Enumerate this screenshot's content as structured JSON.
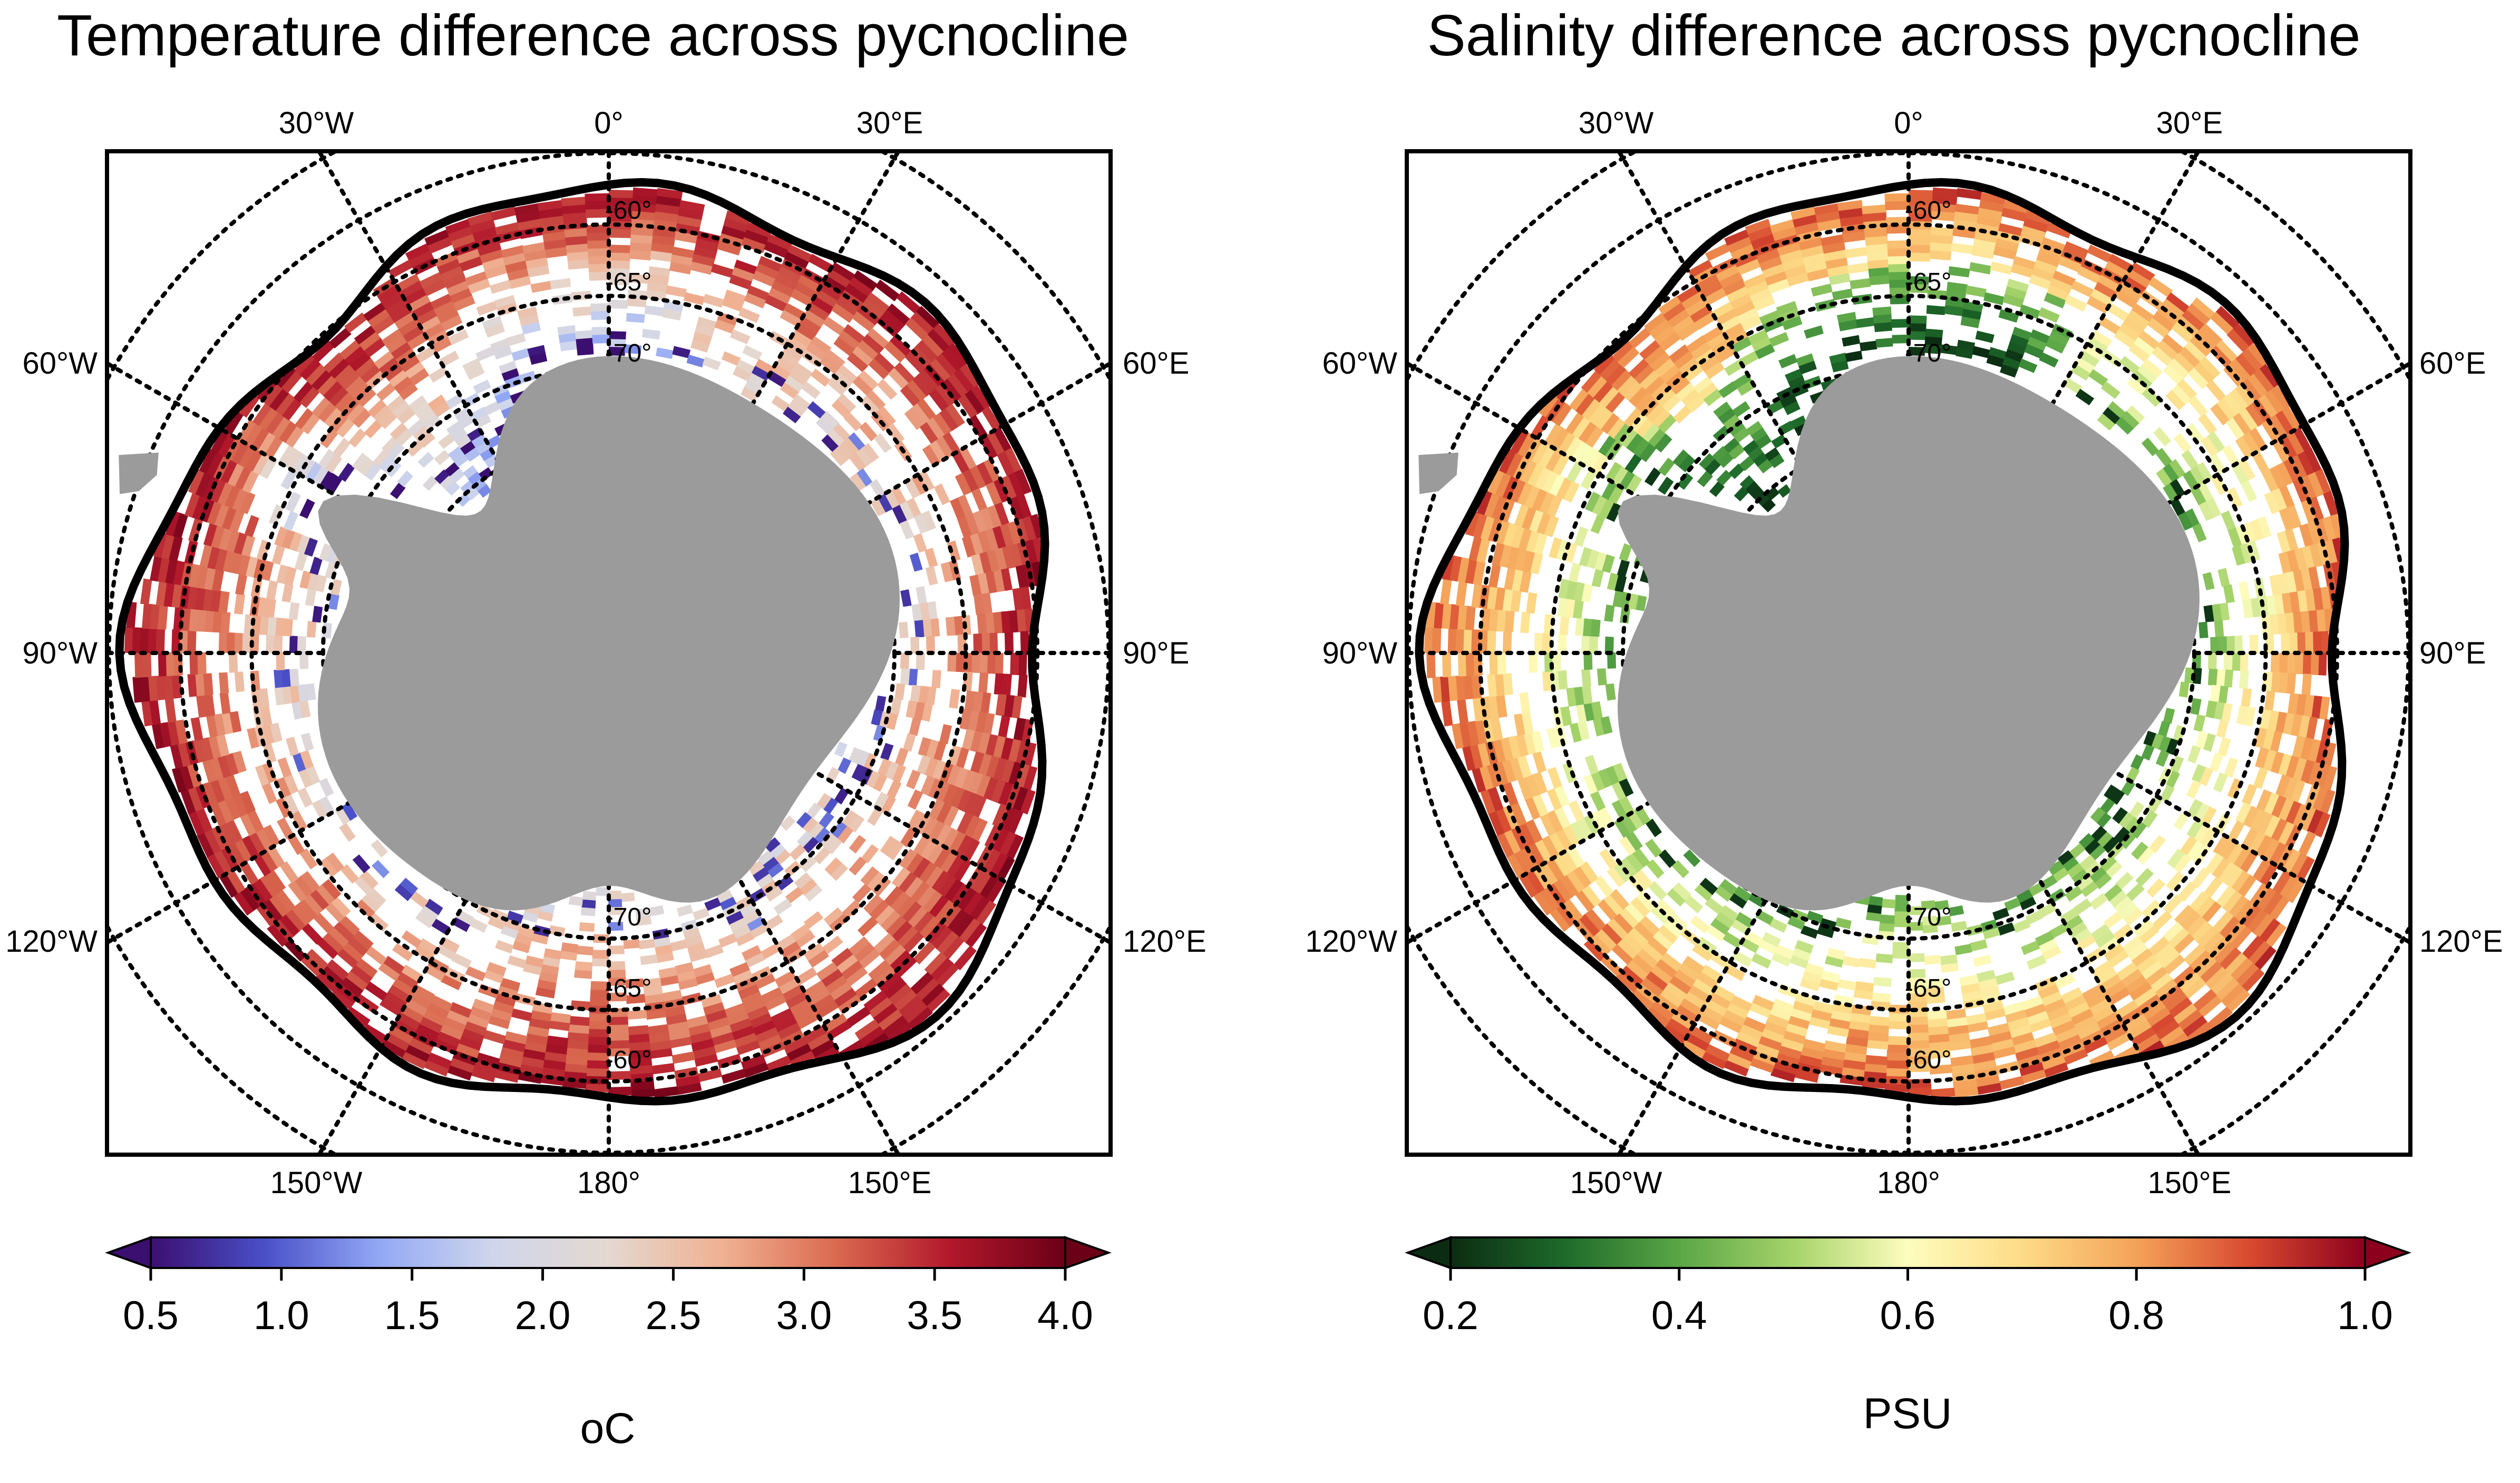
{
  "figure": {
    "panels": [
      {
        "id": "temperature",
        "title": "Temperature difference across pycnocline",
        "colormap": [
          "#3b0f70",
          "#4a50c8",
          "#93a8f4",
          "#cfd6ec",
          "#e4d8d0",
          "#f0b192",
          "#d9694f",
          "#b2182b",
          "#6b0017"
        ],
        "mid_color": "#e6d2c6",
        "colorbar": {
          "ticks": [
            "0.5",
            "1.0",
            "1.5",
            "2.0",
            "2.5",
            "3.0",
            "3.5",
            "4.0"
          ],
          "min": 0.5,
          "max": 4.0,
          "unit": "oC",
          "extend": "both"
        }
      },
      {
        "id": "salinity",
        "title": "Salinity difference across pycnocline",
        "colormap": [
          "#0b2c12",
          "#1e6b2b",
          "#5aa646",
          "#a6d36a",
          "#fdfdbd",
          "#fddb87",
          "#f4a259",
          "#d7492f",
          "#8c001e"
        ],
        "mid_color": "#e8d07a",
        "colorbar": {
          "ticks": [
            "0.2",
            "0.4",
            "0.6",
            "0.8",
            "1.0"
          ],
          "min": 0.2,
          "max": 1.0,
          "unit": "PSU",
          "extend": "both"
        }
      }
    ],
    "longitude_labels": {
      "top": [
        "30°W",
        "0°",
        "30°E"
      ],
      "left": [
        "60°W",
        "90°W",
        "120°W"
      ],
      "right": [
        "60°E",
        "90°E",
        "120°E"
      ],
      "bottom": [
        "150°W",
        "180°",
        "150°E"
      ]
    },
    "latitude_labels": {
      "top": [
        "-60°",
        "-65°",
        "-70°"
      ],
      "bottom": [
        "-70°",
        "-65°",
        "-60°"
      ]
    },
    "style": {
      "land_color": "#9b9b9b",
      "gridline_color": "#000000",
      "contour_color": "#000000"
    }
  }
}
